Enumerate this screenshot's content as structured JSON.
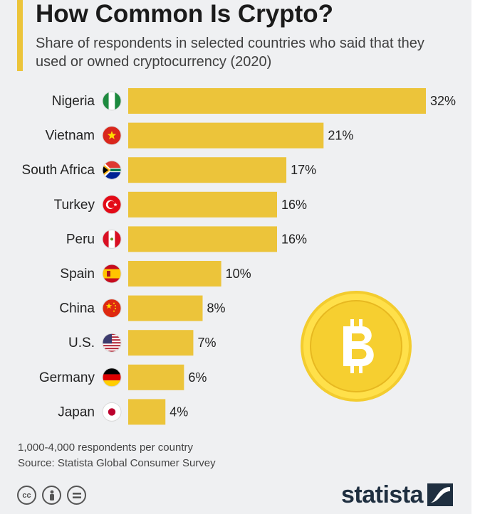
{
  "header": {
    "title": "How Common Is Crypto?",
    "subtitle": "Share of respondents in selected countries who said that they used or owned cryptocurrency (2020)"
  },
  "chart_data": {
    "type": "bar",
    "orientation": "horizontal",
    "categories": [
      "Nigeria",
      "Vietnam",
      "South Africa",
      "Turkey",
      "Peru",
      "Spain",
      "China",
      "U.S.",
      "Germany",
      "Japan"
    ],
    "values": [
      32,
      21,
      17,
      16,
      16,
      10,
      8,
      7,
      6,
      4
    ],
    "value_labels": [
      "32%",
      "21%",
      "17%",
      "16%",
      "16%",
      "10%",
      "8%",
      "7%",
      "6%",
      "4%"
    ],
    "unit": "%",
    "bar_color": "#ecc43a",
    "flags": [
      "nigeria-flag-icon",
      "vietnam-flag-icon",
      "south-africa-flag-icon",
      "turkey-flag-icon",
      "peru-flag-icon",
      "spain-flag-icon",
      "china-flag-icon",
      "us-flag-icon",
      "germany-flag-icon",
      "japan-flag-icon"
    ],
    "decoration": "bitcoin-coin-icon"
  },
  "footer": {
    "note": "1,000-4,000 respondents per country",
    "source": "Source: Statista Global Consumer Survey",
    "brand": "statista",
    "license_icons": [
      "cc-icon",
      "attribution-icon",
      "no-derivatives-icon"
    ]
  },
  "colors": {
    "accent": "#ecc43a",
    "background": "#eff0f2",
    "brand": "#1f2f40"
  }
}
